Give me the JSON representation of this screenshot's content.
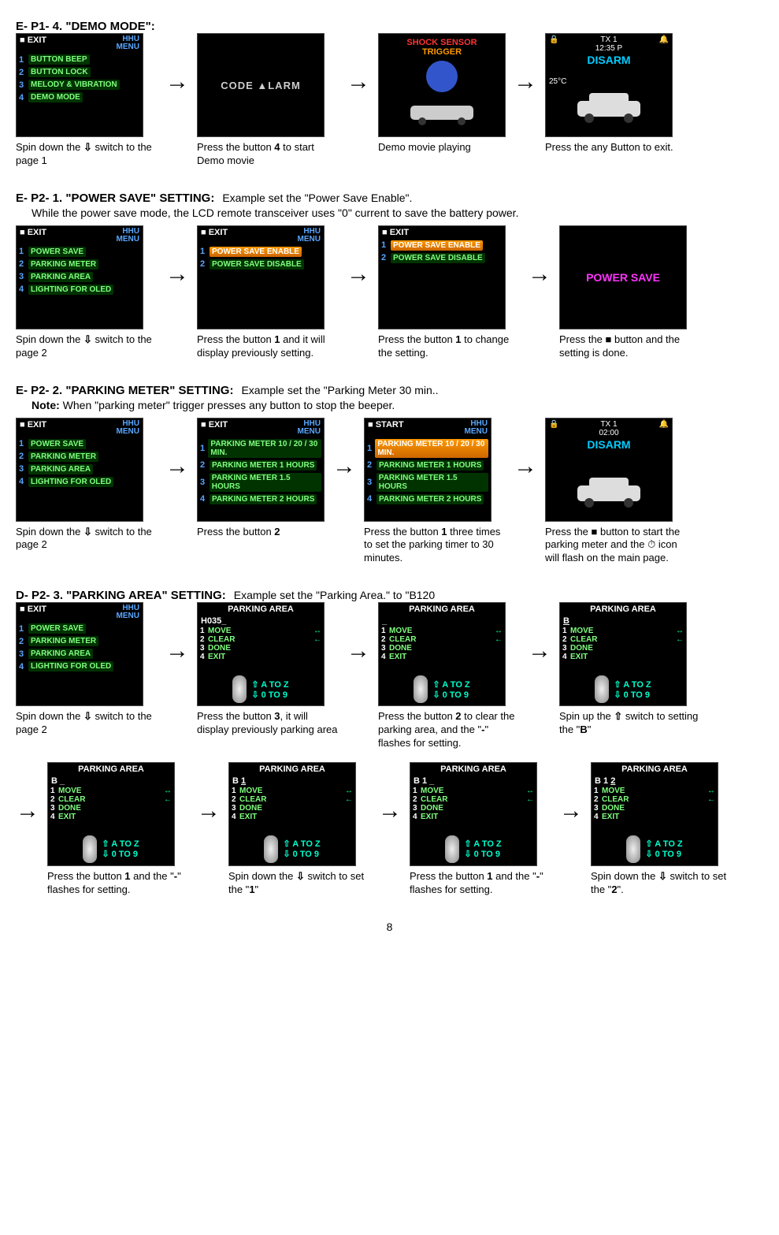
{
  "sections": {
    "demo": {
      "title": "E- P1- 4. \"DEMO MODE\":",
      "steps": [
        {
          "menu_exit": "■ EXIT",
          "hhu": "HHU\nMENU",
          "items": [
            [
              "1",
              "BUTTON BEEP"
            ],
            [
              "2",
              "BUTTON LOCK"
            ],
            [
              "3",
              "MELODY & VIBRATION"
            ],
            [
              "4",
              "DEMO MODE"
            ]
          ],
          "caption": "Spin down the {down} switch to the page 1"
        },
        {
          "screen_type": "code",
          "text": "CODE ▲LARM",
          "caption": "Press the button 4 to start Demo movie",
          "bold": "4"
        },
        {
          "screen_type": "shock",
          "shock": "SHOCK SENSOR",
          "trigger": "TRIGGER",
          "caption": "Demo movie playing"
        },
        {
          "screen_type": "car",
          "tx": "TX 1",
          "time": "12:35 P",
          "disarm": "DISARM",
          "temp": "25°C",
          "caption": "Press the any Button to exit."
        }
      ]
    },
    "powersave": {
      "title": "E- P2- 1. \"POWER SAVE\" SETTING:",
      "example": "Example set the \"Power Save Enable\".",
      "subtitle": "While the power save mode, the LCD remote transceiver uses \"0\" current to save the battery power.",
      "steps": [
        {
          "menu_exit": "■ EXIT",
          "hhu": "HHU\nMENU",
          "items": [
            [
              "1",
              "POWER SAVE"
            ],
            [
              "2",
              "PARKING METER"
            ],
            [
              "3",
              "PARKING AREA"
            ],
            [
              "4",
              "LIGHTING FOR OLED"
            ]
          ],
          "caption": "Spin down the {down} switch to the page 2"
        },
        {
          "menu_exit": "■ EXIT",
          "hhu": "HHU\nMENU",
          "items": [
            [
              "1",
              "POWER SAVE ENABLE",
              "sel"
            ],
            [
              "2",
              "POWER SAVE DISABLE"
            ]
          ],
          "caption": "Press the button 1 and it will display previously setting.",
          "bold": "1"
        },
        {
          "menu_exit": "■ EXIT",
          "hhu": "",
          "items": [
            [
              "1",
              "POWER SAVE ENABLE",
              "sel"
            ],
            [
              "2",
              "POWER SAVE DISABLE"
            ]
          ],
          "caption": "Press the button 1 to change the setting.",
          "bold": "1"
        },
        {
          "screen_type": "powersave",
          "text": "POWER SAVE",
          "caption": "Press the {square} button and the setting is done."
        }
      ]
    },
    "parkingmeter": {
      "title": "E- P2- 2. \"PARKING METER\" SETTING:",
      "example": "Example set the \"Parking Meter 30 min..",
      "note_label": "Note:",
      "note": " When \"parking meter\" trigger presses any button to stop the beeper.",
      "steps": [
        {
          "menu_exit": "■ EXIT",
          "hhu": "HHU\nMENU",
          "items": [
            [
              "1",
              "POWER SAVE"
            ],
            [
              "2",
              "PARKING METER"
            ],
            [
              "3",
              "PARKING AREA"
            ],
            [
              "4",
              "LIGHTING FOR OLED"
            ]
          ],
          "caption": "Spin down the {down} switch to the page 2"
        },
        {
          "menu_exit": "■ EXIT",
          "hhu": "HHU\nMENU",
          "items": [
            [
              "1",
              "PARKING METER 10 / 20 / 30 MIN."
            ],
            [
              "2",
              "PARKING METER 1 HOURS"
            ],
            [
              "3",
              "PARKING METER 1.5 HOURS"
            ],
            [
              "4",
              "PARKING METER 2 HOURS"
            ]
          ],
          "caption": "Press the button 2",
          "bold": "2"
        },
        {
          "menu_exit": "■ START",
          "hhu": "HHU\nMENU",
          "items": [
            [
              "1",
              "PARKING METER 10 / 20 / 30 MIN.",
              "sel"
            ],
            [
              "2",
              "PARKING METER 1 HOURS"
            ],
            [
              "3",
              "PARKING METER 1.5 HOURS"
            ],
            [
              "4",
              "PARKING METER 2 HOURS"
            ]
          ],
          "caption": "Press the button 1 three times to set the parking timer to 30 minutes.",
          "bold": "1"
        },
        {
          "screen_type": "car",
          "tx": "TX 1",
          "time": "02:00",
          "disarm": "DISARM",
          "caption": "Press the {square} button to start the parking meter and the {clock} icon will flash on the main page."
        }
      ]
    },
    "parkingarea": {
      "title": "D- P2- 3. \"PARKING AREA\" SETTING:",
      "example": "Example set the \"Parking Area.\" to \"B120",
      "row1": [
        {
          "menu_exit": "■ EXIT",
          "hhu": "HHU\nMENU",
          "items": [
            [
              "1",
              "POWER SAVE"
            ],
            [
              "2",
              "PARKING METER"
            ],
            [
              "3",
              "PARKING AREA"
            ],
            [
              "4",
              "LIGHTING FOR OLED"
            ]
          ],
          "caption": "Spin down the {down} switch to the page 2"
        },
        {
          "screen_type": "pa",
          "header": "PARKING AREA",
          "input": "H035_",
          "caption": "Press the button 3, it will display previously parking area",
          "bold": "3"
        },
        {
          "screen_type": "pa",
          "header": "PARKING AREA",
          "input": "_",
          "caption": "Press the button 2 to clear the parking area, and the \"-\" flashes for setting.",
          "bold": "2",
          "bold2": "-"
        },
        {
          "screen_type": "pa",
          "header": "PARKING AREA",
          "input": "B",
          "u": "B",
          "caption": "Spin up the {up} switch to setting the \"B\"",
          "bold": "B"
        }
      ],
      "row2": [
        {
          "screen_type": "pa",
          "header": "PARKING AREA",
          "input": "B _",
          "caption": "Press the button 1 and the \"-\" flashes for setting.",
          "bold": "1",
          "bold2": "-"
        },
        {
          "screen_type": "pa",
          "header": "PARKING AREA",
          "input": "B 1",
          "u": "1",
          "caption": "Spin down the {down} switch to set the \"1\"",
          "bold": "1"
        },
        {
          "screen_type": "pa",
          "header": "PARKING AREA",
          "input": "B 1 _",
          "caption": "Press the button 1 and the \"-\" flashes for setting.",
          "bold": "1",
          "bold2": "-"
        },
        {
          "screen_type": "pa",
          "header": "PARKING AREA",
          "input": "B 1 2",
          "u": "2",
          "caption": "Spin down the {down} switch to set the \"2\".",
          "bold": "2"
        }
      ],
      "pa_menu": [
        [
          "1",
          "MOVE",
          "↔"
        ],
        [
          "2",
          "CLEAR",
          "←"
        ],
        [
          "3",
          "DONE",
          ""
        ],
        [
          "4",
          "EXIT",
          ""
        ]
      ],
      "az": "A TO Z",
      "nums": "0 TO 9"
    }
  },
  "page": "8"
}
